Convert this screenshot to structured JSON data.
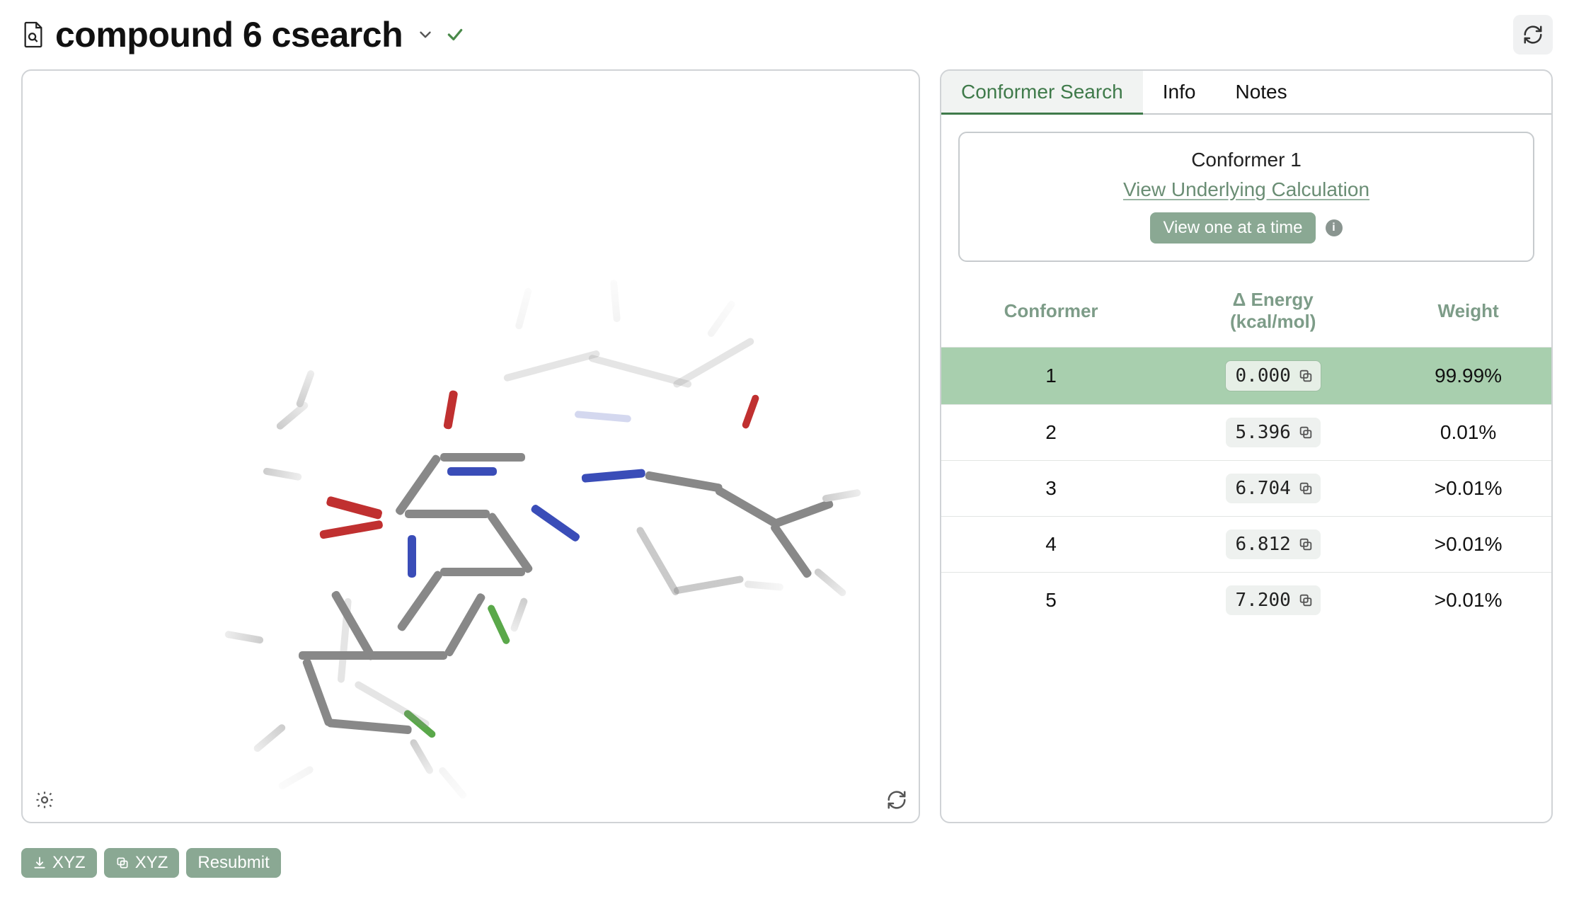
{
  "header": {
    "title": "compound 6 csearch",
    "status": "success"
  },
  "viewer": {
    "actions": {
      "download_label": "XYZ",
      "copy_label": "XYZ",
      "resubmit_label": "Resubmit"
    },
    "molecule_hint": "overlaid conformer stick rendering",
    "atom_colors": {
      "C": "#808080",
      "H": "#d9d9d9",
      "N": "#3a4db8",
      "O": "#c03030",
      "F": "#5aa84a"
    }
  },
  "tabs": {
    "items": [
      {
        "label": "Conformer Search",
        "active": true
      },
      {
        "label": "Info",
        "active": false
      },
      {
        "label": "Notes",
        "active": false
      }
    ]
  },
  "conformer_panel": {
    "title": "Conformer 1",
    "link_label": "View Underlying Calculation",
    "view_mode_label": "View one at a time"
  },
  "table": {
    "columns": {
      "conformer": "Conformer",
      "energy_line1": "Δ Energy",
      "energy_line2": "(kcal/mol)",
      "weight": "Weight"
    },
    "rows": [
      {
        "id": "1",
        "energy": "0.000",
        "weight": "99.99%",
        "selected": true
      },
      {
        "id": "2",
        "energy": "5.396",
        "weight": "0.01%",
        "selected": false
      },
      {
        "id": "3",
        "energy": "6.704",
        "weight": ">0.01%",
        "selected": false
      },
      {
        "id": "4",
        "energy": "6.812",
        "weight": ">0.01%",
        "selected": false
      },
      {
        "id": "5",
        "energy": "7.200",
        "weight": ">0.01%",
        "selected": false
      }
    ]
  },
  "colors": {
    "accent_green": "#3f7a4a",
    "pill_green": "#8aa893",
    "row_selected": "#a8cfae",
    "header_text": "#7d9c88",
    "border": "#d0d3d6"
  }
}
